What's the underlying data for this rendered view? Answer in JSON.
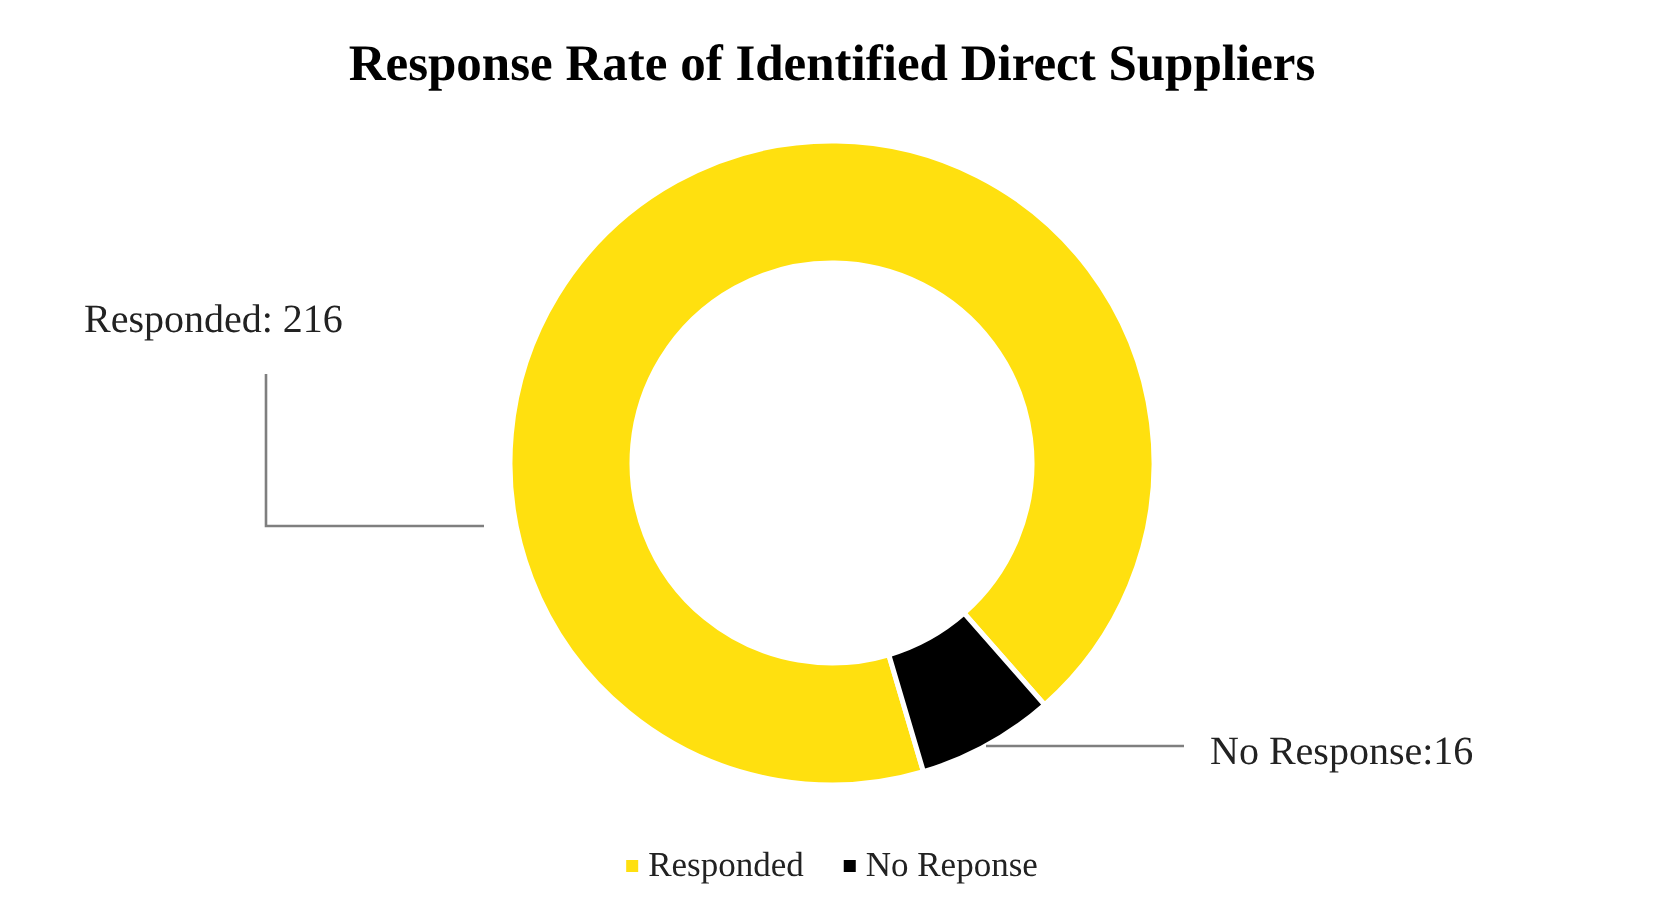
{
  "chart_data": {
    "type": "donut",
    "title": "Response Rate of Identified Direct Suppliers",
    "categories": [
      "Responded",
      "No Reponse"
    ],
    "values": [
      216,
      16
    ],
    "colors": [
      "#ffe00f",
      "#000000"
    ],
    "value_labels": [
      "Responded: 216",
      "No Response:16"
    ],
    "legend": "bottom"
  }
}
